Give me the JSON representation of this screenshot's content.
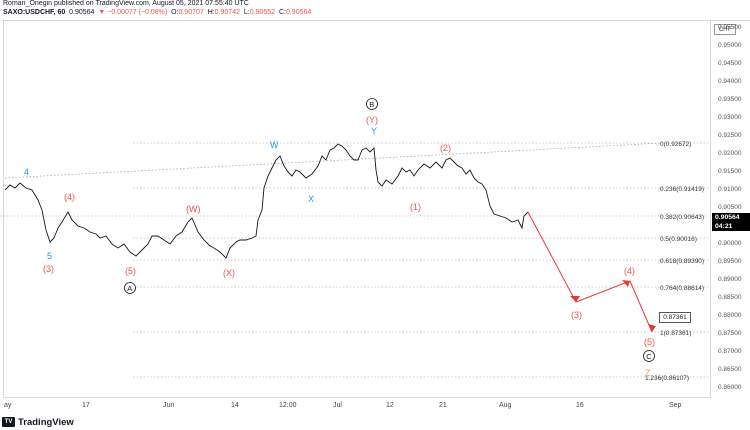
{
  "header": {
    "publisher": "Roman_Onegin published on TradingView.com, August 05, 2021 07:55:40 UTC",
    "symbol": "SAXO:USDCHF, 60",
    "last": "0.90564",
    "change": "−0.00077 (−0.08%)",
    "open_label": "O:",
    "open": "0.90707",
    "high_label": "H:",
    "high": "0.90742",
    "low_label": "L:",
    "low": "0.90552",
    "close_label": "C:",
    "close": "0.90564"
  },
  "price_axis": {
    "currency": "CHF",
    "labels": [
      "0.95500",
      "0.95000",
      "0.94500",
      "0.94000",
      "0.93500",
      "0.93000",
      "0.92500",
      "0.92000",
      "0.91500",
      "0.91000",
      "0.90500",
      "0.90000",
      "0.89500",
      "0.89000",
      "0.88500",
      "0.88000",
      "0.87500",
      "0.87000",
      "0.86500",
      "0.86000"
    ],
    "last_price": "0.90564",
    "countdown": "04:21",
    "tooltip_price": "0.87361"
  },
  "time_axis": {
    "labels": [
      "ay",
      "17",
      "Jun",
      "14",
      "12:00",
      "Jul",
      "12",
      "21",
      "Aug",
      "16",
      "Sep"
    ]
  },
  "fib_levels": [
    {
      "label": "0(0.92672)"
    },
    {
      "label": "0.236(0.91419)"
    },
    {
      "label": "0.382(0.90643)"
    },
    {
      "label": "0.5(0.90016)"
    },
    {
      "label": "0.618(0.89390)"
    },
    {
      "label": "0.764(0.88614)"
    },
    {
      "label": "1(0.87361)"
    },
    {
      "label": "1.236(0.86107)"
    }
  ],
  "wave_labels": {
    "blue": [
      "4",
      "5",
      "W",
      "X",
      "Y"
    ],
    "red": [
      "(4)",
      "(3)",
      "(5)",
      "(W)",
      "(X)",
      "(Y)",
      "(2)",
      "(1)",
      "(3)",
      "(4)",
      "(5)"
    ],
    "circled": [
      "A",
      "B",
      "C"
    ],
    "orange": [
      "Z"
    ]
  },
  "colors": {
    "accent_red": "#ef5350",
    "wave_blue": "#2196f3",
    "projection_red": "#e53935",
    "candle": "#131722"
  },
  "footer": {
    "brand": "TradingView"
  }
}
